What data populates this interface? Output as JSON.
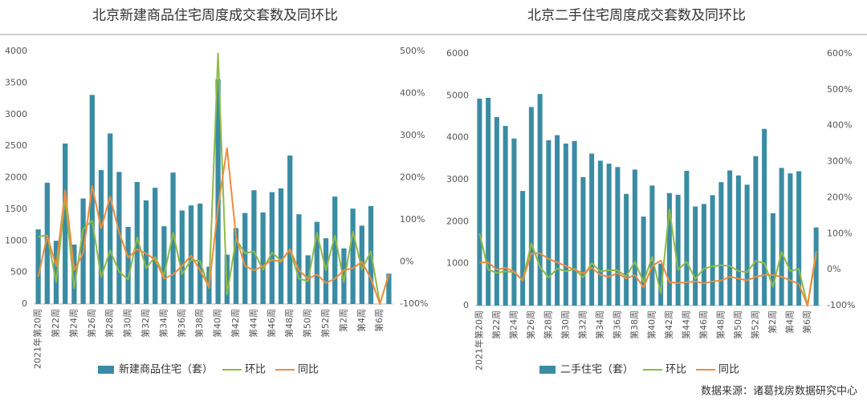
{
  "chart_data": [
    {
      "type": "bar",
      "title": "北京新建商品住宅周度成交套数及同环比",
      "categories": [
        "2021年第20周",
        null,
        "第22周",
        null,
        "第24周",
        null,
        "第26周",
        null,
        "第28周",
        null,
        "第30周",
        null,
        "第32周",
        null,
        "第34周",
        null,
        "第36周",
        null,
        "第38周",
        null,
        "第40周",
        null,
        "第42周",
        null,
        "第44周",
        null,
        "第46周",
        null,
        "第48周",
        null,
        "第50周",
        null,
        "第52周",
        null,
        "第2周",
        null,
        "第4周",
        null,
        "第6周",
        null
      ],
      "series": [
        {
          "name": "新建商品住宅（套）",
          "type": "bar",
          "color": "#3a8ca3",
          "values": [
            1180,
            1920,
            1000,
            2540,
            940,
            1670,
            3310,
            2120,
            2700,
            2090,
            1220,
            1930,
            1640,
            1840,
            1230,
            2080,
            1480,
            1560,
            1590,
            590,
            3560,
            780,
            1200,
            1440,
            1800,
            1450,
            1770,
            1830,
            2350,
            1420,
            770,
            1300,
            1040,
            1700,
            880,
            1510,
            1240,
            1550,
            0,
            480
          ]
        },
        {
          "name": "环比",
          "type": "line",
          "axis": "y2",
          "color": "#8fba46",
          "values": [
            60,
            63,
            -48,
            154,
            -63,
            78,
            98,
            -36,
            27,
            -23,
            -42,
            58,
            -15,
            12,
            -33,
            69,
            -29,
            5,
            2,
            -63,
            495,
            -78,
            54,
            20,
            25,
            -19,
            22,
            3,
            28,
            -40,
            -46,
            69,
            -20,
            63,
            -48,
            72,
            -18,
            25,
            -100,
            -30
          ]
        },
        {
          "name": "同比",
          "type": "line",
          "axis": "y2",
          "color": "#f08b3d",
          "values": [
            -35,
            62,
            -10,
            170,
            -20,
            20,
            180,
            80,
            155,
            70,
            10,
            30,
            20,
            5,
            -40,
            -30,
            -10,
            15,
            -20,
            -60,
            130,
            270,
            60,
            -10,
            -20,
            -10,
            5,
            0,
            30,
            -20,
            -40,
            -30,
            -50,
            -40,
            -20,
            -15,
            0,
            -40,
            -100,
            -30
          ]
        }
      ],
      "ylim": [
        0,
        4000
      ],
      "yticks": [
        0,
        500,
        1000,
        1500,
        2000,
        2500,
        3000,
        3500,
        4000
      ],
      "y2lim": [
        -100,
        500
      ],
      "y2ticks": [
        {
          "value": -100,
          "label": "-100%"
        },
        {
          "value": 0,
          "label": "0%"
        },
        {
          "value": 100,
          "label": "100%"
        },
        {
          "value": 200,
          "label": "200%"
        },
        {
          "value": 300,
          "label": "300%"
        },
        {
          "value": 400,
          "label": "400%"
        },
        {
          "value": 500,
          "label": "500%"
        }
      ]
    },
    {
      "type": "bar",
      "title": "北京二手住宅周度成交套数及同环比",
      "categories": [
        "2021年第20周",
        null,
        "第22周",
        null,
        "第24周",
        null,
        "第26周",
        null,
        "第28周",
        null,
        "第30周",
        null,
        "第32周",
        null,
        "第34周",
        null,
        "第36周",
        null,
        "第38周",
        null,
        "第40周",
        null,
        "第42周",
        null,
        "第44周",
        null,
        "第46周",
        null,
        "第48周",
        null,
        "第50周",
        null,
        "第52周",
        null,
        "第2周",
        null,
        "第4周",
        null,
        "第6周",
        null
      ],
      "series": [
        {
          "name": "二手住宅（套）",
          "type": "bar",
          "color": "#3a8ca3",
          "values": [
            4930,
            4950,
            4490,
            4280,
            3980,
            2730,
            4730,
            5040,
            3940,
            4060,
            3860,
            3920,
            3060,
            3620,
            3450,
            3380,
            3300,
            2660,
            3240,
            2120,
            2860,
            1000,
            2680,
            2640,
            3210,
            2360,
            2420,
            2630,
            2940,
            3220,
            3100,
            2880,
            3560,
            4210,
            2200,
            3280,
            3150,
            3200,
            0,
            1860
          ]
        },
        {
          "name": "环比",
          "type": "line",
          "axis": "y2",
          "color": "#8fba46",
          "values": [
            100,
            0,
            -9,
            -5,
            -7,
            -31,
            73,
            7,
            -22,
            3,
            -5,
            2,
            -22,
            18,
            -5,
            -2,
            -2,
            -19,
            22,
            -35,
            35,
            -65,
            168,
            -1,
            22,
            -26,
            3,
            9,
            12,
            10,
            -4,
            -7,
            24,
            18,
            -48,
            49,
            -4,
            2,
            -100,
            40
          ]
        },
        {
          "name": "同比",
          "type": "line",
          "axis": "y2",
          "color": "#f08b3d",
          "values": [
            20,
            20,
            0,
            5,
            -5,
            -30,
            45,
            45,
            30,
            20,
            10,
            0,
            -10,
            5,
            -15,
            -20,
            -10,
            -25,
            -15,
            -50,
            10,
            25,
            -35,
            -37,
            -35,
            -33,
            -38,
            -33,
            -30,
            -20,
            -25,
            -30,
            -20,
            -15,
            -15,
            -20,
            -30,
            -40,
            -100,
            50
          ]
        }
      ],
      "ylim": [
        0,
        6000
      ],
      "yticks": [
        0,
        1000,
        2000,
        3000,
        4000,
        5000,
        6000
      ],
      "y2lim": [
        -100,
        600
      ],
      "y2ticks": [
        {
          "value": -100,
          "label": "-100%"
        },
        {
          "value": 0,
          "label": "0%"
        },
        {
          "value": 100,
          "label": "100%"
        },
        {
          "value": 200,
          "label": "200%"
        },
        {
          "value": 300,
          "label": "300%"
        },
        {
          "value": 400,
          "label": "400%"
        },
        {
          "value": 500,
          "label": "500%"
        },
        {
          "value": 600,
          "label": "600%"
        }
      ]
    }
  ],
  "source": "数据来源：诸葛找房数据研究中心"
}
